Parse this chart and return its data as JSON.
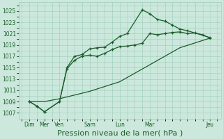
{
  "bg_color": "#cce8dc",
  "grid_color": "#99ccbb",
  "line_color": "#1a5c2a",
  "xlabel": "Pression niveau de la mer( hPa )",
  "xlabel_fontsize": 8,
  "yticks": [
    1007,
    1009,
    1011,
    1013,
    1015,
    1017,
    1019,
    1021,
    1023,
    1025
  ],
  "ylim": [
    1006.0,
    1026.5
  ],
  "xlim": [
    -0.2,
    13.2
  ],
  "xtick_positions": [
    0.5,
    1.5,
    2.5,
    4.5,
    6.5,
    8.5,
    12.5
  ],
  "xtick_labels": [
    "Dim",
    "Mer",
    "Ven",
    "Sam",
    "Lun",
    "Mar",
    "Jeu"
  ],
  "series1_x": [
    0.5,
    1.0,
    1.5,
    2.5,
    3.0,
    3.5,
    4.0,
    4.5,
    5.0,
    5.5,
    6.0,
    6.5,
    7.0,
    7.5,
    8.0,
    8.5,
    9.0,
    9.5,
    10.0,
    10.5,
    11.0,
    11.5,
    12.0,
    12.5
  ],
  "series1_y": [
    1009,
    1008.2,
    1007.2,
    1009,
    1014.8,
    1016.3,
    1017.0,
    1017.2,
    1017.0,
    1017.5,
    1018.2,
    1018.7,
    1018.8,
    1019.0,
    1019.3,
    1021.0,
    1020.8,
    1021.0,
    1021.2,
    1021.3,
    1021.0,
    1021.1,
    1020.8,
    1020.2
  ],
  "series2_x": [
    0.5,
    1.0,
    1.5,
    2.5,
    3.0,
    3.5,
    4.0,
    4.5,
    5.0,
    5.5,
    6.0,
    6.5,
    7.0,
    8.0,
    8.5,
    9.0,
    9.5,
    10.0,
    10.5,
    11.0,
    12.5
  ],
  "series2_y": [
    1009,
    1008.2,
    1007.2,
    1009,
    1015,
    1017.0,
    1017.3,
    1018.3,
    1018.5,
    1018.6,
    1019.5,
    1020.5,
    1021.0,
    1025.2,
    1024.5,
    1023.5,
    1023.2,
    1022.5,
    1021.8,
    1021.5,
    1020.3
  ],
  "series3_x": [
    0.5,
    1.5,
    2.5,
    4.5,
    6.5,
    8.5,
    10.5,
    12.5
  ],
  "series3_y": [
    1009,
    1009,
    1009.5,
    1010.8,
    1012.5,
    1015.5,
    1018.5,
    1020.2
  ]
}
